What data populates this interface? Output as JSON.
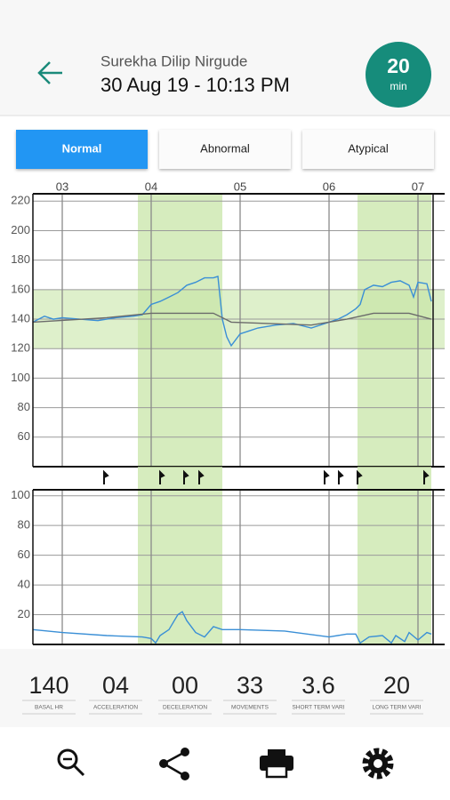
{
  "header": {
    "patient": "Surekha Dilip Nirgude",
    "datetime": "30 Aug 19 - 10:13 PM",
    "badge_value": "20",
    "badge_unit": "min"
  },
  "tabs": {
    "items": [
      "Normal",
      "Abnormal",
      "Atypical"
    ],
    "selected": 0
  },
  "chart_data": [
    {
      "type": "line",
      "xlim": [
        2.67,
        7.3
      ],
      "ylim": [
        40,
        225
      ],
      "xticks": [
        {
          "value": 3,
          "label": "03"
        },
        {
          "value": 4,
          "label": "04"
        },
        {
          "value": 5,
          "label": "05"
        },
        {
          "value": 6,
          "label": "06"
        },
        {
          "value": 7,
          "label": "07"
        }
      ],
      "yticks": [
        60,
        80,
        100,
        120,
        140,
        160,
        180,
        200,
        220
      ],
      "grid": true,
      "bands": [
        [
          3.85,
          4.8
        ],
        [
          6.32,
          7.15
        ]
      ],
      "band_color": "#c8e6a8",
      "hband": [
        120,
        160
      ],
      "series": [
        {
          "color": "#3a8fd6",
          "x": [
            2.67,
            2.8,
            2.9,
            3.0,
            3.2,
            3.4,
            3.6,
            3.8,
            3.9,
            4.0,
            4.1,
            4.2,
            4.3,
            4.4,
            4.5,
            4.6,
            4.7,
            4.75,
            4.8,
            4.85,
            4.9,
            5.0,
            5.1,
            5.2,
            5.4,
            5.6,
            5.8,
            6.0,
            6.1,
            6.2,
            6.3,
            6.35,
            6.4,
            6.5,
            6.6,
            6.7,
            6.8,
            6.9,
            6.95,
            7.0,
            7.1,
            7.15
          ],
          "values": [
            138,
            142,
            140,
            141,
            140,
            139,
            141,
            142,
            143,
            150,
            152,
            155,
            158,
            163,
            165,
            168,
            168,
            169,
            140,
            128,
            122,
            130,
            132,
            134,
            136,
            137,
            134,
            138,
            140,
            143,
            147,
            150,
            160,
            163,
            162,
            165,
            166,
            163,
            155,
            165,
            164,
            152
          ]
        },
        {
          "color": "#6b6b6b",
          "x": [
            2.67,
            3.5,
            4.0,
            4.7,
            4.9,
            5.8,
            6.2,
            6.5,
            6.9,
            7.15
          ],
          "values": [
            138,
            141,
            144,
            144,
            138,
            136,
            140,
            144,
            144,
            140
          ]
        }
      ]
    },
    {
      "type": "line",
      "xlim": [
        2.67,
        7.3
      ],
      "ylim": [
        0,
        104
      ],
      "yticks": [
        20,
        40,
        60,
        80,
        100
      ],
      "grid": true,
      "bands": [
        [
          3.85,
          4.8
        ],
        [
          6.32,
          7.15
        ]
      ],
      "band_color": "#c8e6a8",
      "movement_x": [
        3.47,
        4.1,
        4.37,
        4.54,
        5.95,
        6.11,
        6.32,
        7.07
      ],
      "series": [
        {
          "color": "#3a8fd6",
          "x": [
            2.67,
            3.0,
            3.5,
            3.9,
            4.0,
            4.05,
            4.1,
            4.2,
            4.3,
            4.35,
            4.4,
            4.5,
            4.6,
            4.7,
            4.8,
            5.0,
            5.5,
            6.0,
            6.2,
            6.3,
            6.35,
            6.45,
            6.6,
            6.7,
            6.75,
            6.85,
            6.9,
            7.0,
            7.1,
            7.15
          ],
          "values": [
            10,
            8,
            6,
            5,
            4,
            1,
            6,
            10,
            20,
            22,
            16,
            8,
            5,
            12,
            10,
            10,
            9,
            5,
            7,
            7,
            1,
            5,
            6,
            1,
            6,
            2,
            8,
            3,
            8,
            7
          ]
        }
      ]
    }
  ],
  "stats": [
    {
      "value": "140",
      "label": "BASAL HR"
    },
    {
      "value": "04",
      "label": "ACCELERATION"
    },
    {
      "value": "00",
      "label": "DECELERATION"
    },
    {
      "value": "33",
      "label": "MOVEMENTS"
    },
    {
      "value": "3.6",
      "label": "SHORT TERM VARI"
    },
    {
      "value": "20",
      "label": "LONG TERM VARI"
    }
  ]
}
